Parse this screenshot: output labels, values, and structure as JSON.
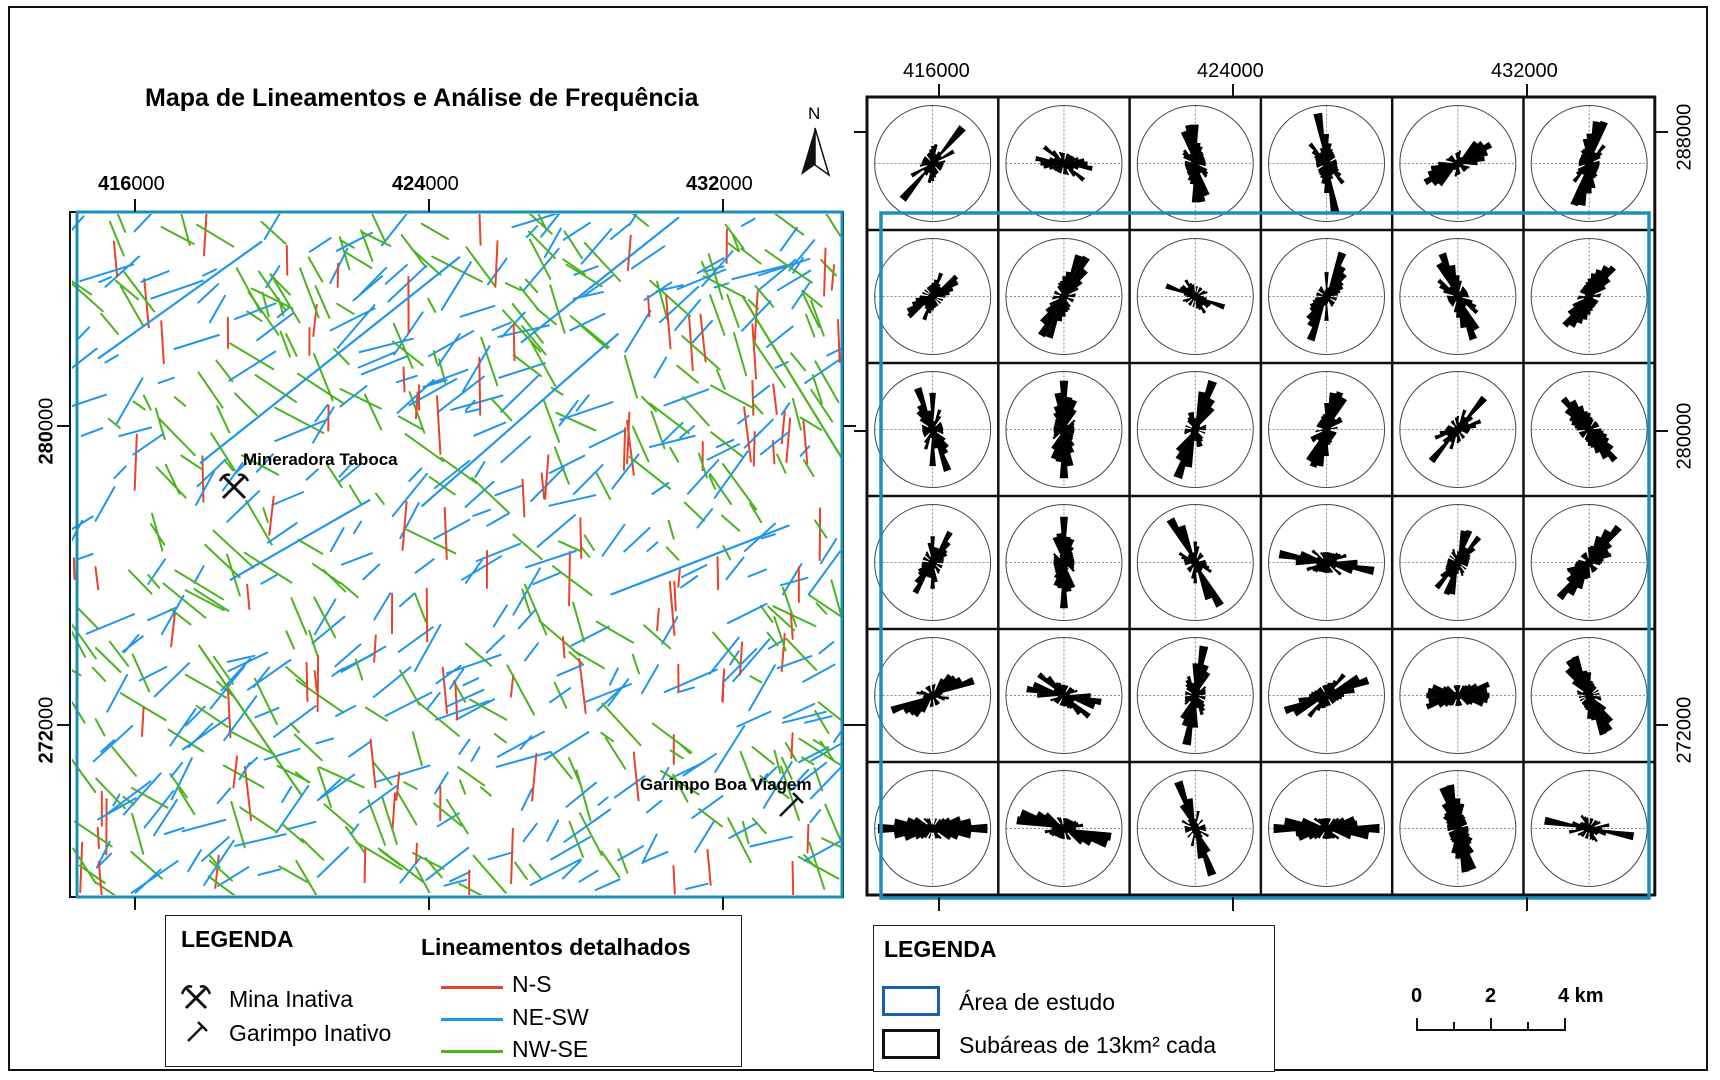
{
  "title": "Mapa de Lineamentos e Análise de Frequência",
  "north_label": "N",
  "left_map": {
    "x_ticks": [
      {
        "bold": "416",
        "rest": "000"
      },
      {
        "bold": "424",
        "rest": "000"
      },
      {
        "bold": "432",
        "rest": "000"
      }
    ],
    "y_ticks": [
      {
        "bold": "280",
        "rest": "000"
      },
      {
        "bold": "272",
        "rest": "000"
      }
    ],
    "places": {
      "mine": "Mineradora Taboca",
      "garimpo": "Garimpo Boa Viagem"
    }
  },
  "right_map": {
    "x_ticks": [
      "416000",
      "424000",
      "432000"
    ],
    "y_ticks": [
      "288000",
      "280000",
      "272000"
    ],
    "rose_rows": 6,
    "rose_cols": 6
  },
  "legend_left": {
    "title": "LEGENDA",
    "mine_label": "Mina Inativa",
    "garimpo_label": "Garimpo Inativo",
    "lineaments_title": "Lineamentos detalhados",
    "lineaments": [
      {
        "label": "N-S",
        "color": "#e8432a"
      },
      {
        "label": "NE-SW",
        "color": "#2196e8"
      },
      {
        "label": "NW-SE",
        "color": "#4cb320"
      }
    ]
  },
  "legend_right": {
    "title": "LEGENDA",
    "items": [
      {
        "label": "Área de estudo",
        "color": "#1b5fb0"
      },
      {
        "label": "Subáreas de 13km² cada",
        "color": "#111111"
      }
    ]
  },
  "scale_bar": {
    "labels": [
      "0",
      "2",
      "4 km"
    ]
  },
  "colors": {
    "study_area": "#1b8fb8",
    "frame": "#111111"
  }
}
